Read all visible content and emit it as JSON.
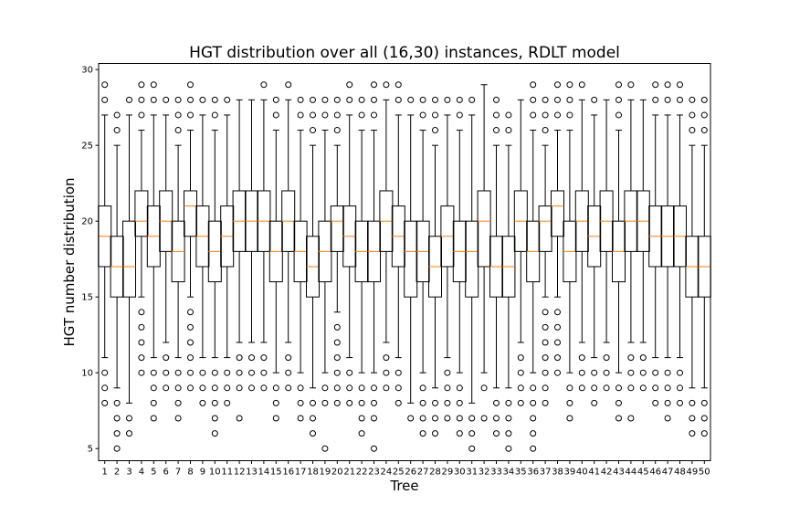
{
  "chart_data": {
    "type": "boxplot",
    "title": "HGT distribution over all (16,30) instances, RDLT model",
    "xlabel": "Tree",
    "ylabel": "HGT number distribution",
    "ylim": [
      4.2,
      30.4
    ],
    "yticks": [
      5,
      10,
      15,
      20,
      25,
      30
    ],
    "grid": false,
    "colors": {
      "box": "#000000",
      "median": "#ff7f0e",
      "flier": "#000000"
    },
    "categories": [
      "1",
      "2",
      "3",
      "4",
      "5",
      "6",
      "7",
      "8",
      "9",
      "10",
      "11",
      "12",
      "13",
      "14",
      "15",
      "16",
      "17",
      "18",
      "19",
      "20",
      "21",
      "22",
      "23",
      "24",
      "25",
      "26",
      "27",
      "28",
      "29",
      "30",
      "31",
      "32",
      "33",
      "34",
      "35",
      "36",
      "37",
      "38",
      "39",
      "40",
      "41",
      "42",
      "43",
      "44",
      "45",
      "46",
      "47",
      "48",
      "49",
      "50"
    ],
    "boxes": [
      {
        "q1": 17,
        "med": 19,
        "q3": 21,
        "whislo": 11,
        "whishi": 27,
        "fliers": [
          10,
          9,
          8,
          28,
          29
        ]
      },
      {
        "q1": 15,
        "med": 17,
        "q3": 19,
        "whislo": 9,
        "whishi": 25,
        "fliers": [
          8,
          7,
          6,
          5,
          26,
          27
        ]
      },
      {
        "q1": 15,
        "med": 17,
        "q3": 20,
        "whislo": 8,
        "whishi": 27,
        "fliers": [
          7,
          6,
          28
        ]
      },
      {
        "q1": 19,
        "med": 20,
        "q3": 22,
        "whislo": 15,
        "whishi": 26,
        "fliers": [
          14,
          13,
          12,
          11,
          10,
          27,
          28,
          29
        ]
      },
      {
        "q1": 17,
        "med": 19,
        "q3": 21,
        "whislo": 11,
        "whishi": 27,
        "fliers": [
          10,
          9,
          8,
          7,
          28,
          29
        ]
      },
      {
        "q1": 18,
        "med": 20,
        "q3": 22,
        "whislo": 12,
        "whishi": 27,
        "fliers": [
          11,
          10,
          9,
          28
        ]
      },
      {
        "q1": 16,
        "med": 18,
        "q3": 20,
        "whislo": 11,
        "whishi": 25,
        "fliers": [
          10,
          9,
          8,
          7,
          26,
          27,
          28
        ]
      },
      {
        "q1": 19,
        "med": 21,
        "q3": 22,
        "whislo": 15,
        "whishi": 26,
        "fliers": [
          14,
          13,
          12,
          11,
          10,
          9,
          27,
          28,
          29
        ]
      },
      {
        "q1": 17,
        "med": 19,
        "q3": 21,
        "whislo": 11,
        "whishi": 27,
        "fliers": [
          10,
          9,
          8,
          28
        ]
      },
      {
        "q1": 16,
        "med": 18,
        "q3": 20,
        "whislo": 11,
        "whishi": 26,
        "fliers": [
          10,
          9,
          8,
          7,
          6,
          27,
          28
        ]
      },
      {
        "q1": 17,
        "med": 19,
        "q3": 21,
        "whislo": 11,
        "whishi": 27,
        "fliers": [
          10,
          9,
          8,
          28
        ]
      },
      {
        "q1": 18,
        "med": 20,
        "q3": 22,
        "whislo": 12,
        "whishi": 28,
        "fliers": [
          11,
          10,
          9,
          7
        ]
      },
      {
        "q1": 18,
        "med": 20,
        "q3": 22,
        "whislo": 12,
        "whishi": 28,
        "fliers": [
          11,
          10,
          9
        ]
      },
      {
        "q1": 18,
        "med": 20,
        "q3": 22,
        "whislo": 12,
        "whishi": 28,
        "fliers": [
          11,
          10,
          9,
          29
        ]
      },
      {
        "q1": 16,
        "med": 18,
        "q3": 20,
        "whislo": 10,
        "whishi": 26,
        "fliers": [
          9,
          8,
          7,
          27,
          28
        ]
      },
      {
        "q1": 18,
        "med": 20,
        "q3": 22,
        "whislo": 12,
        "whishi": 28,
        "fliers": [
          11,
          10,
          9,
          29
        ]
      },
      {
        "q1": 16,
        "med": 18,
        "q3": 20,
        "whislo": 10,
        "whishi": 26,
        "fliers": [
          9,
          8,
          7,
          27,
          28
        ]
      },
      {
        "q1": 15,
        "med": 17,
        "q3": 19,
        "whislo": 9,
        "whishi": 25,
        "fliers": [
          8,
          7,
          6,
          26,
          27,
          28
        ]
      },
      {
        "q1": 16,
        "med": 18,
        "q3": 20,
        "whislo": 10,
        "whishi": 26,
        "fliers": [
          9,
          8,
          5,
          27,
          28
        ]
      },
      {
        "q1": 18,
        "med": 20,
        "q3": 21,
        "whislo": 14,
        "whishi": 25,
        "fliers": [
          13,
          12,
          11,
          10,
          9,
          8,
          26,
          27,
          28
        ]
      },
      {
        "q1": 17,
        "med": 19,
        "q3": 21,
        "whislo": 11,
        "whishi": 27,
        "fliers": [
          10,
          9,
          8,
          28,
          29
        ]
      },
      {
        "q1": 16,
        "med": 18,
        "q3": 20,
        "whislo": 10,
        "whishi": 26,
        "fliers": [
          9,
          8,
          7,
          6,
          27,
          28
        ]
      },
      {
        "q1": 16,
        "med": 18,
        "q3": 20,
        "whislo": 10,
        "whishi": 26,
        "fliers": [
          9,
          8,
          7,
          5,
          27,
          28,
          29
        ]
      },
      {
        "q1": 18,
        "med": 20,
        "q3": 22,
        "whislo": 12,
        "whishi": 28,
        "fliers": [
          11,
          10,
          9,
          29
        ]
      },
      {
        "q1": 17,
        "med": 19,
        "q3": 21,
        "whislo": 11,
        "whishi": 27,
        "fliers": [
          10,
          9,
          8,
          28,
          29
        ]
      },
      {
        "q1": 15,
        "med": 18,
        "q3": 20,
        "whislo": 8,
        "whishi": 27,
        "fliers": [
          7,
          28
        ]
      },
      {
        "q1": 16,
        "med": 18,
        "q3": 20,
        "whislo": 10,
        "whishi": 26,
        "fliers": [
          9,
          8,
          7,
          6,
          27,
          28
        ]
      },
      {
        "q1": 15,
        "med": 17,
        "q3": 19,
        "whislo": 9,
        "whishi": 25,
        "fliers": [
          8,
          7,
          6,
          26,
          27,
          28
        ]
      },
      {
        "q1": 17,
        "med": 19,
        "q3": 21,
        "whislo": 11,
        "whishi": 27,
        "fliers": [
          10,
          9,
          8,
          7,
          28
        ]
      },
      {
        "q1": 16,
        "med": 18,
        "q3": 20,
        "whislo": 10,
        "whishi": 26,
        "fliers": [
          9,
          8,
          7,
          6,
          27,
          28
        ]
      },
      {
        "q1": 15,
        "med": 18,
        "q3": 20,
        "whislo": 8,
        "whishi": 27,
        "fliers": [
          7,
          6,
          5,
          28
        ]
      },
      {
        "q1": 17,
        "med": 20,
        "q3": 22,
        "whislo": 10,
        "whishi": 29,
        "fliers": [
          9,
          7
        ]
      },
      {
        "q1": 15,
        "med": 17,
        "q3": 19,
        "whislo": 9,
        "whishi": 25,
        "fliers": [
          8,
          7,
          6,
          26,
          27,
          28
        ]
      },
      {
        "q1": 15,
        "med": 17,
        "q3": 19,
        "whislo": 9,
        "whishi": 25,
        "fliers": [
          8,
          7,
          6,
          5,
          26,
          27
        ]
      },
      {
        "q1": 18,
        "med": 20,
        "q3": 22,
        "whislo": 12,
        "whishi": 28,
        "fliers": [
          11,
          10,
          9,
          8
        ]
      },
      {
        "q1": 16,
        "med": 18,
        "q3": 20,
        "whislo": 10,
        "whishi": 26,
        "fliers": [
          9,
          8,
          7,
          6,
          5,
          27,
          28,
          29
        ]
      },
      {
        "q1": 18,
        "med": 20,
        "q3": 21,
        "whislo": 15,
        "whishi": 25,
        "fliers": [
          14,
          13,
          12,
          11,
          10,
          9,
          8,
          26,
          27,
          28
        ]
      },
      {
        "q1": 19,
        "med": 21,
        "q3": 22,
        "whislo": 15,
        "whishi": 26,
        "fliers": [
          14,
          13,
          12,
          11,
          10,
          27,
          28,
          29
        ]
      },
      {
        "q1": 16,
        "med": 18,
        "q3": 20,
        "whislo": 10,
        "whishi": 26,
        "fliers": [
          9,
          8,
          7,
          27,
          28,
          29
        ]
      },
      {
        "q1": 18,
        "med": 20,
        "q3": 22,
        "whislo": 12,
        "whishi": 28,
        "fliers": [
          11,
          10,
          9,
          29
        ]
      },
      {
        "q1": 17,
        "med": 19,
        "q3": 21,
        "whislo": 11,
        "whishi": 27,
        "fliers": [
          10,
          9,
          8,
          28
        ]
      },
      {
        "q1": 18,
        "med": 20,
        "q3": 22,
        "whislo": 12,
        "whishi": 28,
        "fliers": [
          11,
          10,
          9
        ]
      },
      {
        "q1": 16,
        "med": 18,
        "q3": 20,
        "whislo": 10,
        "whishi": 26,
        "fliers": [
          9,
          8,
          7,
          27,
          28,
          29
        ]
      },
      {
        "q1": 18,
        "med": 20,
        "q3": 22,
        "whislo": 12,
        "whishi": 28,
        "fliers": [
          11,
          10,
          9,
          7,
          29
        ]
      },
      {
        "q1": 18,
        "med": 20,
        "q3": 22,
        "whislo": 12,
        "whishi": 28,
        "fliers": [
          11,
          10,
          9
        ]
      },
      {
        "q1": 17,
        "med": 19,
        "q3": 21,
        "whislo": 11,
        "whishi": 27,
        "fliers": [
          10,
          9,
          8,
          28,
          29
        ]
      },
      {
        "q1": 17,
        "med": 19,
        "q3": 21,
        "whislo": 11,
        "whishi": 27,
        "fliers": [
          10,
          9,
          8,
          7,
          28,
          29
        ]
      },
      {
        "q1": 17,
        "med": 19,
        "q3": 21,
        "whislo": 11,
        "whishi": 27,
        "fliers": [
          10,
          9,
          8,
          28,
          29
        ]
      },
      {
        "q1": 15,
        "med": 17,
        "q3": 19,
        "whislo": 9,
        "whishi": 25,
        "fliers": [
          8,
          7,
          6,
          26,
          27,
          28
        ]
      },
      {
        "q1": 15,
        "med": 17,
        "q3": 19,
        "whislo": 9,
        "whishi": 25,
        "fliers": [
          8,
          7,
          6,
          26,
          27,
          28
        ]
      }
    ]
  }
}
